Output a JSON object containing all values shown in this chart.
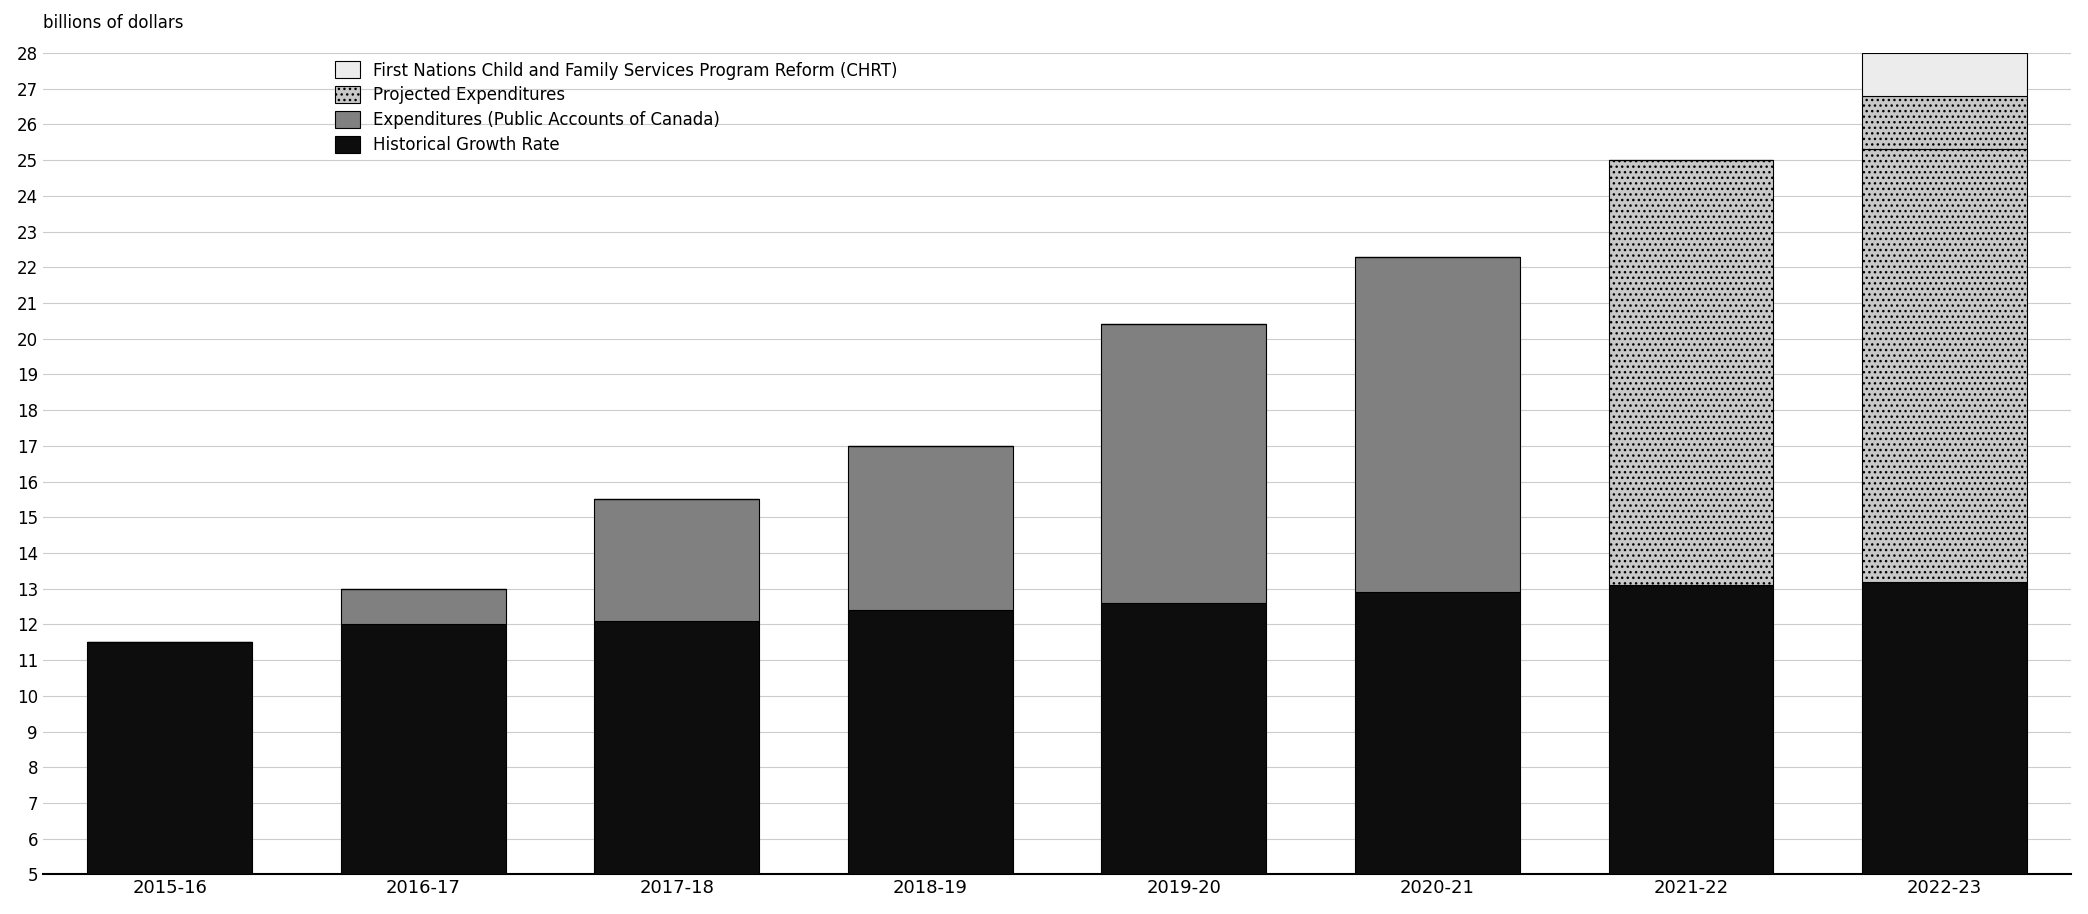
{
  "categories": [
    "2015-16",
    "2016-17",
    "2017-18",
    "2018-19",
    "2019-20",
    "2020-21",
    "2021-22",
    "2022-23"
  ],
  "historical_growth": [
    11.5,
    12.0,
    12.1,
    12.4,
    12.6,
    12.9,
    13.1,
    13.2
  ],
  "expenditures": [
    0,
    1.0,
    3.4,
    4.6,
    7.8,
    9.4,
    0,
    0
  ],
  "projected": [
    0,
    0,
    0,
    0,
    0,
    0,
    11.9,
    12.1
  ],
  "proj_extra": [
    0,
    0,
    0,
    0,
    0,
    0,
    0,
    1.5
  ],
  "chrt": [
    0,
    0,
    0,
    0,
    0,
    0,
    0,
    1.2
  ],
  "ylim": [
    5,
    28
  ],
  "yticks": [
    5,
    6,
    7,
    8,
    9,
    10,
    11,
    12,
    13,
    14,
    15,
    16,
    17,
    18,
    19,
    20,
    21,
    22,
    23,
    24,
    25,
    26,
    27,
    28
  ],
  "ylabel": "billions of dollars",
  "color_historical": "#0d0d0d",
  "color_expenditures": "#808080",
  "color_projected": "#b0b0b0",
  "color_chrt": "#ececec",
  "legend_labels": [
    "First Nations Child and Family Services Program Reform (CHRT)",
    "Projected Expenditures",
    "Expenditures (Public Accounts of Canada)",
    "Historical Growth Rate"
  ],
  "bar_width": 0.65,
  "background_color": "#ffffff",
  "grid_color": "#cccccc"
}
